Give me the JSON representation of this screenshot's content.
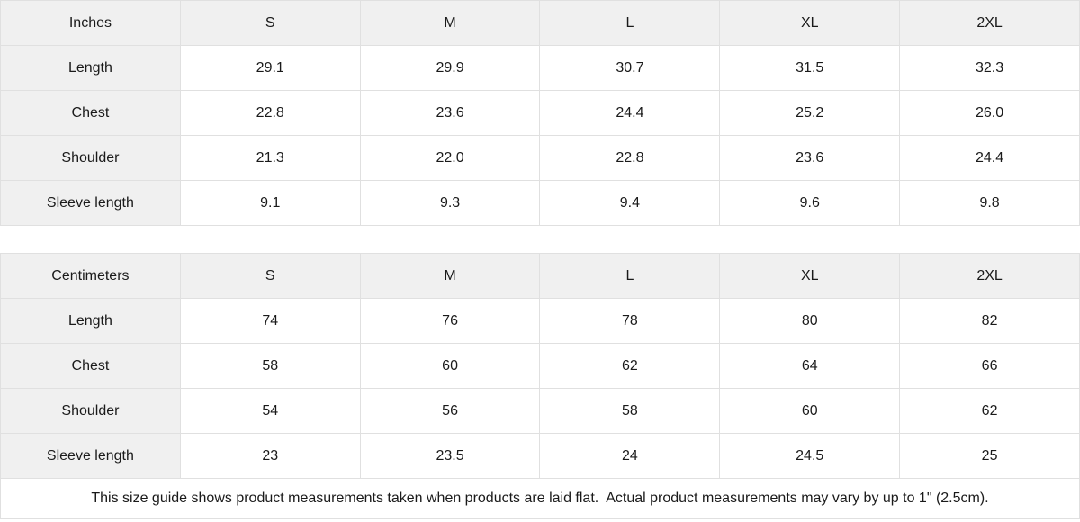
{
  "colors": {
    "header_background": "#f0f0f0",
    "border": "#e0e0e0",
    "text": "#1a1a1a",
    "page_background": "#ffffff"
  },
  "tables": [
    {
      "unit_label": "Inches",
      "columns": [
        "S",
        "M",
        "L",
        "XL",
        "2XL"
      ],
      "rows": [
        {
          "label": "Length",
          "values": [
            "29.1",
            "29.9",
            "30.7",
            "31.5",
            "32.3"
          ]
        },
        {
          "label": "Chest",
          "values": [
            "22.8",
            "23.6",
            "24.4",
            "25.2",
            "26.0"
          ]
        },
        {
          "label": "Shoulder",
          "values": [
            "21.3",
            "22.0",
            "22.8",
            "23.6",
            "24.4"
          ]
        },
        {
          "label": "Sleeve length",
          "values": [
            "9.1",
            "9.3",
            "9.4",
            "9.6",
            "9.8"
          ]
        }
      ]
    },
    {
      "unit_label": "Centimeters",
      "columns": [
        "S",
        "M",
        "L",
        "XL",
        "2XL"
      ],
      "rows": [
        {
          "label": "Length",
          "values": [
            "74",
            "76",
            "78",
            "80",
            "82"
          ]
        },
        {
          "label": "Chest",
          "values": [
            "58",
            "60",
            "62",
            "64",
            "66"
          ]
        },
        {
          "label": "Shoulder",
          "values": [
            "54",
            "56",
            "58",
            "60",
            "62"
          ]
        },
        {
          "label": "Sleeve length",
          "values": [
            "23",
            "23.5",
            "24",
            "24.5",
            "25"
          ]
        }
      ]
    }
  ],
  "footer": {
    "note": "This size guide shows product measurements taken when products are laid flat.  Actual product measurements may vary by up to 1\" (2.5cm)."
  }
}
